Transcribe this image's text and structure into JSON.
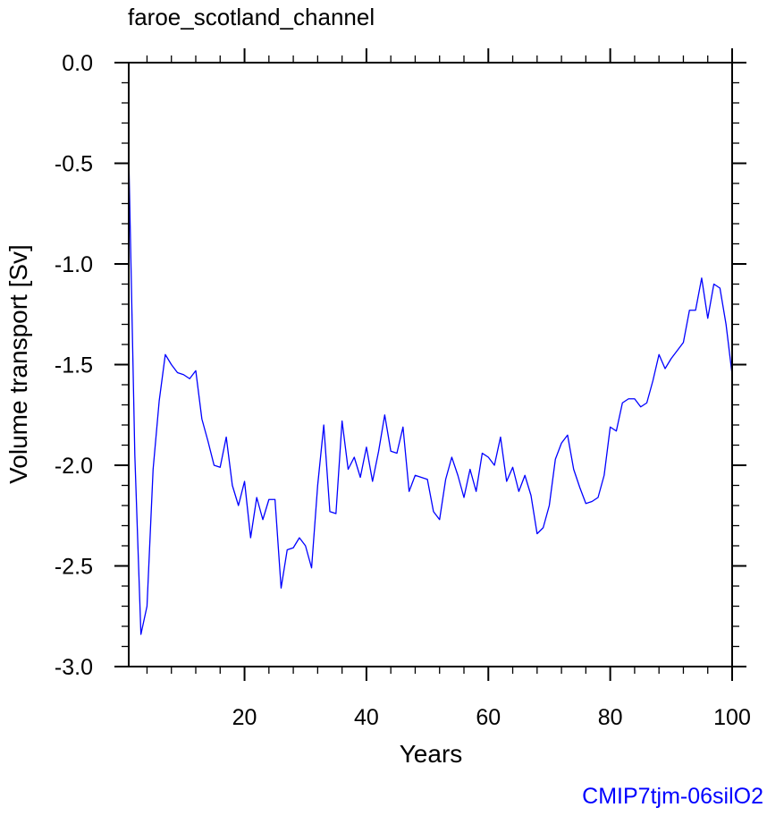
{
  "chart_data": {
    "type": "line",
    "title": "faroe_scotland_channel",
    "xlabel": "Years",
    "ylabel": "Volume transport [Sv]",
    "xlim": [
      1,
      100
    ],
    "ylim": [
      -3.0,
      0.0
    ],
    "xticks": [
      20,
      40,
      60,
      80,
      100
    ],
    "yticks": [
      0.0,
      -0.5,
      -1.0,
      -1.5,
      -2.0,
      -2.5,
      -3.0
    ],
    "ytick_labels": [
      "0.0",
      "-0.5",
      "-1.0",
      "-1.5",
      "-2.0",
      "-2.5",
      "-3.0"
    ],
    "grid": false,
    "series": [
      {
        "color": "#0000ff",
        "x": [
          1,
          2,
          3,
          4,
          5,
          6,
          7,
          8,
          9,
          10,
          11,
          12,
          13,
          14,
          15,
          16,
          17,
          18,
          19,
          20,
          21,
          22,
          23,
          24,
          25,
          26,
          27,
          28,
          29,
          30,
          31,
          32,
          33,
          34,
          35,
          36,
          37,
          38,
          39,
          40,
          41,
          42,
          43,
          44,
          45,
          46,
          47,
          48,
          49,
          50,
          51,
          52,
          53,
          54,
          55,
          56,
          57,
          58,
          59,
          60,
          61,
          62,
          63,
          64,
          65,
          66,
          67,
          68,
          69,
          70,
          71,
          72,
          73,
          74,
          75,
          76,
          77,
          78,
          79,
          80,
          81,
          82,
          83,
          84,
          85,
          86,
          87,
          88,
          89,
          90,
          91,
          92,
          93,
          94,
          95,
          96,
          97,
          98,
          99,
          100
        ],
        "values": [
          -0.45,
          -1.95,
          -2.84,
          -2.7,
          -2.02,
          -1.68,
          -1.45,
          -1.5,
          -1.54,
          -1.55,
          -1.57,
          -1.53,
          -1.77,
          -1.88,
          -2.0,
          -2.01,
          -1.86,
          -2.1,
          -2.2,
          -2.08,
          -2.36,
          -2.16,
          -2.27,
          -2.17,
          -2.17,
          -2.61,
          -2.42,
          -2.41,
          -2.36,
          -2.4,
          -2.51,
          -2.1,
          -1.8,
          -2.23,
          -2.24,
          -1.78,
          -2.02,
          -1.96,
          -2.06,
          -1.91,
          -2.08,
          -1.93,
          -1.75,
          -1.93,
          -1.94,
          -1.81,
          -2.13,
          -2.05,
          -2.06,
          -2.07,
          -2.23,
          -2.27,
          -2.07,
          -1.96,
          -2.05,
          -2.16,
          -2.02,
          -2.13,
          -1.94,
          -1.96,
          -2.0,
          -1.86,
          -2.08,
          -2.01,
          -2.13,
          -2.05,
          -2.15,
          -2.34,
          -2.31,
          -2.2,
          -1.97,
          -1.89,
          -1.85,
          -2.02,
          -2.11,
          -2.19,
          -2.18,
          -2.16,
          -2.05,
          -1.81,
          -1.83,
          -1.69,
          -1.67,
          -1.67,
          -1.71,
          -1.69,
          -1.58,
          -1.45,
          -1.52,
          -1.47,
          -1.43,
          -1.39,
          -1.23,
          -1.23,
          -1.07,
          -1.27,
          -1.1,
          -1.12,
          -1.3,
          -1.55
        ]
      }
    ]
  },
  "run_label": "CMIP7tjm-06silO2",
  "run_label_color": "#0000ff"
}
